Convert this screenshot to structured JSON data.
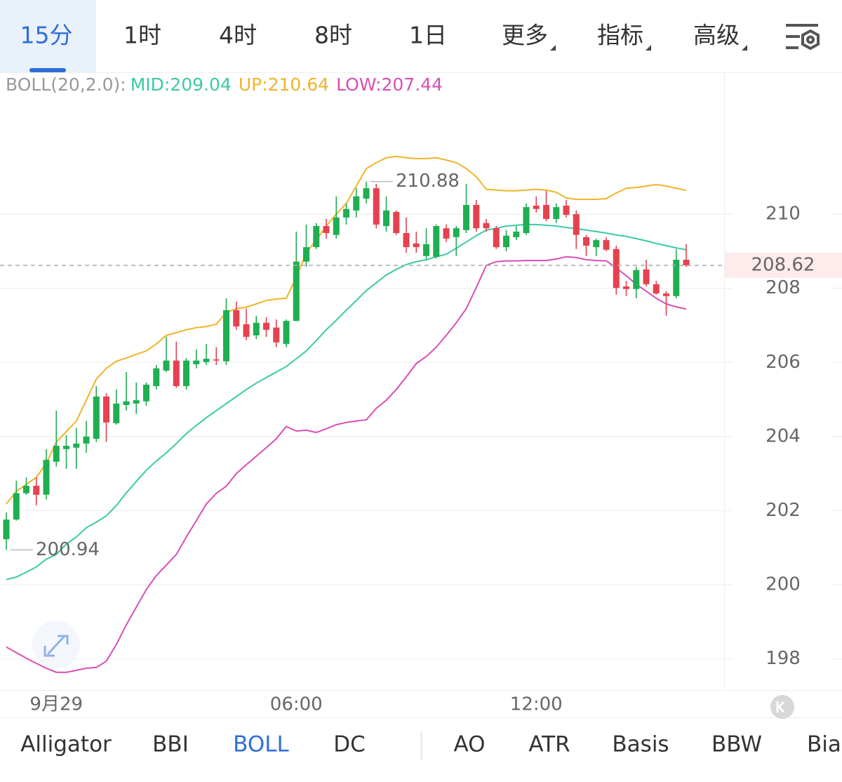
{
  "tabs": [
    "15分",
    "1时",
    "4时",
    "8时",
    "1日",
    "更多",
    "指标",
    "高级"
  ],
  "indicator_tabs": [
    "Alligator",
    "BBI",
    "BOLL",
    "DC",
    "AO",
    "ATR",
    "Basis",
    "BBW",
    "Bias"
  ],
  "chart_data": {
    "type": "candlestick",
    "indicator_label": "BOLL(20,2.0):",
    "categories": [
      null,
      null,
      null,
      null,
      null,
      "9月29",
      null,
      null,
      null,
      null,
      null,
      null,
      null,
      null,
      null,
      null,
      null,
      null,
      null,
      null,
      null,
      null,
      null,
      null,
      null,
      null,
      null,
      null,
      null,
      "06:00",
      null,
      null,
      null,
      null,
      null,
      null,
      null,
      null,
      null,
      null,
      null,
      null,
      null,
      null,
      null,
      null,
      null,
      null,
      null,
      null,
      null,
      null,
      null,
      "12:00",
      null,
      null,
      null,
      null,
      null,
      null,
      null,
      null,
      null,
      null,
      null,
      null,
      null,
      null,
      null
    ],
    "open": [
      201.23,
      201.76,
      202.47,
      202.67,
      202.43,
      203.32,
      203.66,
      203.7,
      203.81,
      203.94,
      205.08,
      204.36,
      204.85,
      204.89,
      204.95,
      205.36,
      205.78,
      206.05,
      205.36,
      205.95,
      206.01,
      206.08,
      206.03,
      207.41,
      207.03,
      206.73,
      207.07,
      206.94,
      206.5,
      207.12,
      208.72,
      209.11,
      209.68,
      209.44,
      209.91,
      210.1,
      210.42,
      210.7,
      209.68,
      210.06,
      209.49,
      209.21,
      208.87,
      208.85,
      209.62,
      209.38,
      209.57,
      210.25,
      209.76,
      209.62,
      209.11,
      209.38,
      209.49,
      210.23,
      210.25,
      209.87,
      210.23,
      210.0,
      209.38,
      209.11,
      209.3,
      209.06,
      208.05,
      207.98,
      208.51,
      208.11,
      207.86,
      207.79,
      208.77
    ],
    "high": [
      201.95,
      202.81,
      202.9,
      202.9,
      203.66,
      204.7,
      204.04,
      204.23,
      204.42,
      205.36,
      205.17,
      205.27,
      205.74,
      205.46,
      205.46,
      205.93,
      206.69,
      206.56,
      206.12,
      206.35,
      206.5,
      206.41,
      207.73,
      207.64,
      207.45,
      207.26,
      207.22,
      207.16,
      207.16,
      209.53,
      209.72,
      209.76,
      209.87,
      210.48,
      210.29,
      210.7,
      210.88,
      210.82,
      210.48,
      210.1,
      209.91,
      209.53,
      209.62,
      209.72,
      209.72,
      209.68,
      210.82,
      210.38,
      209.87,
      209.68,
      209.57,
      209.68,
      210.29,
      210.48,
      210.63,
      210.29,
      210.38,
      210.1,
      209.44,
      209.34,
      209.38,
      209.15,
      208.2,
      208.58,
      208.77,
      208.2,
      207.92,
      209.06,
      209.19
    ],
    "low": [
      200.94,
      201.73,
      202.43,
      202.14,
      202.3,
      203.19,
      203.13,
      203.13,
      203.56,
      203.85,
      203.85,
      204.32,
      204.7,
      204.61,
      204.83,
      205.27,
      205.74,
      205.31,
      205.27,
      205.84,
      205.93,
      205.93,
      205.93,
      206.88,
      206.6,
      206.63,
      206.69,
      206.41,
      206.41,
      207.11,
      208.58,
      209.06,
      209.34,
      209.34,
      209.72,
      209.91,
      210.29,
      209.62,
      209.53,
      209.44,
      208.96,
      208.96,
      208.77,
      208.81,
      209.25,
      208.87,
      209.49,
      209.53,
      209.53,
      209.06,
      209.0,
      209.3,
      209.44,
      210.04,
      209.81,
      209.76,
      209.91,
      209.06,
      208.87,
      208.87,
      209.0,
      207.83,
      207.79,
      207.73,
      208.05,
      207.83,
      207.26,
      207.73,
      208.58
    ],
    "close": [
      201.76,
      202.47,
      202.67,
      202.43,
      203.37,
      203.75,
      203.75,
      203.81,
      204.0,
      205.08,
      204.38,
      204.89,
      204.95,
      204.98,
      205.4,
      205.84,
      206.05,
      205.36,
      206.05,
      206.05,
      206.1,
      206.05,
      207.41,
      206.97,
      206.69,
      207.07,
      206.88,
      206.54,
      207.12,
      208.72,
      209.11,
      209.68,
      209.49,
      209.91,
      210.14,
      210.48,
      210.7,
      209.72,
      210.1,
      209.49,
      209.11,
      209.11,
      209.19,
      209.68,
      209.34,
      209.62,
      210.25,
      209.62,
      209.62,
      209.11,
      209.42,
      209.53,
      210.19,
      210.14,
      209.87,
      210.19,
      209.98,
      209.44,
      209.15,
      209.3,
      209.04,
      208.01,
      207.98,
      208.49,
      208.11,
      207.86,
      207.79,
      208.77,
      208.62
    ],
    "up_color": "#1fae51",
    "down_color": "#e5414f",
    "bands": [
      {
        "name": "MID:",
        "color": "#3cc9a4",
        "values": [
          200.14,
          200.21,
          200.34,
          200.48,
          200.69,
          200.82,
          201.1,
          201.29,
          201.54,
          201.69,
          201.86,
          202.14,
          202.48,
          202.79,
          203.09,
          203.34,
          203.56,
          203.81,
          204.08,
          204.3,
          204.51,
          204.7,
          204.89,
          205.08,
          205.27,
          205.44,
          205.59,
          205.74,
          205.89,
          206.1,
          206.31,
          206.59,
          206.88,
          207.14,
          207.41,
          207.67,
          207.94,
          208.15,
          208.36,
          208.51,
          208.64,
          208.72,
          208.77,
          208.85,
          208.92,
          209.08,
          209.25,
          209.42,
          209.57,
          209.62,
          209.68,
          209.7,
          209.72,
          209.72,
          209.7,
          209.68,
          209.64,
          209.61,
          209.57,
          209.53,
          209.49,
          209.44,
          209.4,
          209.34,
          209.28,
          209.21,
          209.15,
          209.09,
          209.04
        ]
      },
      {
        "name": "UP:",
        "color": "#f0b429",
        "values": [
          202.18,
          202.52,
          202.71,
          202.9,
          203.28,
          203.85,
          204.13,
          204.42,
          204.98,
          205.55,
          205.84,
          206.03,
          206.12,
          206.22,
          206.31,
          206.5,
          206.73,
          206.8,
          206.88,
          206.94,
          206.97,
          207.03,
          207.35,
          207.45,
          207.49,
          207.58,
          207.67,
          207.71,
          207.73,
          208.3,
          208.96,
          209.3,
          209.68,
          210.0,
          210.29,
          210.76,
          211.23,
          211.39,
          211.52,
          211.56,
          211.52,
          211.5,
          211.5,
          211.52,
          211.46,
          211.39,
          211.23,
          211.01,
          210.67,
          210.65,
          210.63,
          210.63,
          210.65,
          210.67,
          210.65,
          210.59,
          210.44,
          210.4,
          210.4,
          210.4,
          210.42,
          210.57,
          210.7,
          210.72,
          210.76,
          210.8,
          210.76,
          210.7,
          210.64
        ]
      },
      {
        "name": "LOW:",
        "color": "#d94fb4",
        "values": [
          198.32,
          198.17,
          198.02,
          197.88,
          197.75,
          197.64,
          197.64,
          197.69,
          197.75,
          197.77,
          197.94,
          198.39,
          198.92,
          199.4,
          199.87,
          200.25,
          200.53,
          200.82,
          201.29,
          201.73,
          202.18,
          202.47,
          202.66,
          203.0,
          203.24,
          203.47,
          203.7,
          203.94,
          204.27,
          204.15,
          204.17,
          204.11,
          204.21,
          204.32,
          204.38,
          204.42,
          204.45,
          204.76,
          204.98,
          205.27,
          205.61,
          205.97,
          206.16,
          206.41,
          206.73,
          207.07,
          207.45,
          208.02,
          208.62,
          208.72,
          208.74,
          208.74,
          208.75,
          208.75,
          208.75,
          208.79,
          208.85,
          208.83,
          208.77,
          208.75,
          208.74,
          208.55,
          208.34,
          208.11,
          207.92,
          207.73,
          207.58,
          207.5,
          207.44
        ]
      }
    ],
    "ylim": [
      197.16,
      213.79
    ],
    "yticks": [
      198,
      200,
      202,
      204,
      206,
      208,
      210
    ],
    "grid": true
  }
}
